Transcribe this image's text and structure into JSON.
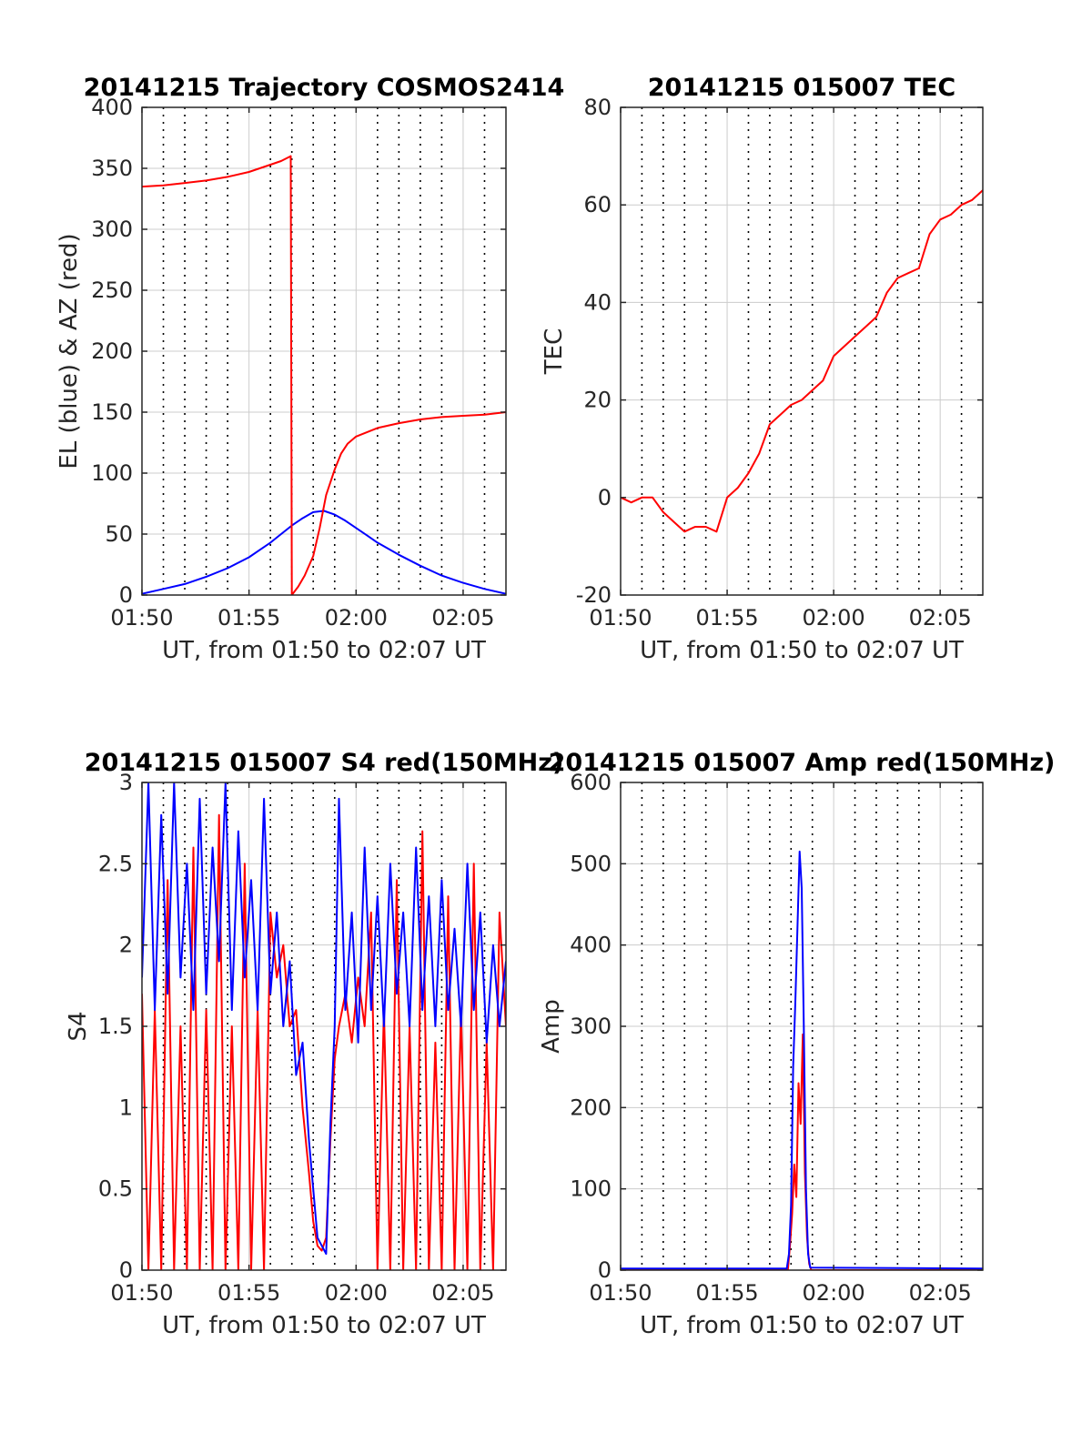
{
  "colors": {
    "red": "#ff0000",
    "blue": "#0000ff",
    "grid": "#cccccc",
    "dots": "#000000",
    "axis": "#262626"
  },
  "chart_data": [
    {
      "type": "line",
      "title": "20141215 Trajectory COSMOS2414",
      "xlabel": "UT, from 01:50 to 02:07 UT",
      "ylabel": "EL (blue) & AZ (red)",
      "xlim": [
        0,
        17
      ],
      "ylim": [
        0,
        400
      ],
      "x_ticks": [
        0,
        5,
        10,
        15
      ],
      "x_tick_labels": [
        "01:50",
        "01:55",
        "02:00",
        "02:05"
      ],
      "y_ticks": [
        0,
        50,
        100,
        150,
        200,
        250,
        300,
        350,
        400
      ],
      "y_tick_labels": [
        "0",
        "50",
        "100",
        "150",
        "200",
        "250",
        "300",
        "350",
        "400"
      ],
      "grid": true,
      "series": [
        {
          "color": "blue",
          "x": [
            0,
            1,
            2,
            3,
            4,
            5,
            5.5,
            6,
            6.5,
            7,
            7.5,
            8,
            8.5,
            9,
            9.5,
            10,
            10.5,
            11,
            12,
            13,
            14,
            15,
            16,
            17
          ],
          "y": [
            1,
            5,
            9,
            15,
            22,
            31,
            37,
            43,
            50,
            57,
            63,
            68,
            69,
            66,
            61,
            55,
            49,
            43,
            33,
            24,
            16,
            10,
            5,
            1
          ]
        },
        {
          "color": "red",
          "x": [
            0,
            1,
            2,
            3,
            4,
            5,
            5.5,
            6,
            6.5,
            6.95,
            7.0,
            7.3,
            7.6,
            8.0,
            8.3,
            8.6,
            9.0,
            9.3,
            9.6,
            10.0,
            11.0,
            12.0,
            13.0,
            14.0,
            15.0,
            16.0,
            17.0
          ],
          "y": [
            335,
            336,
            338,
            340,
            343,
            347,
            350,
            353,
            356,
            360,
            0,
            7,
            16,
            32,
            55,
            82,
            103,
            116,
            124,
            130,
            137,
            141,
            144,
            146,
            147,
            148,
            150
          ]
        }
      ]
    },
    {
      "type": "line",
      "title": "20141215 015007 TEC",
      "xlabel": "UT, from 01:50 to 02:07 UT",
      "ylabel": "TEC",
      "xlim": [
        0,
        17
      ],
      "ylim": [
        -20,
        80
      ],
      "x_ticks": [
        0,
        5,
        10,
        15
      ],
      "x_tick_labels": [
        "01:50",
        "01:55",
        "02:00",
        "02:05"
      ],
      "y_ticks": [
        -20,
        0,
        20,
        40,
        60,
        80
      ],
      "y_tick_labels": [
        "-20",
        "0",
        "20",
        "40",
        "60",
        "80"
      ],
      "grid": true,
      "series": [
        {
          "color": "red",
          "x": [
            0,
            0.5,
            1,
            1.5,
            2,
            2.5,
            3,
            3.5,
            4,
            4.5,
            5,
            5.5,
            6,
            6.5,
            7,
            7.5,
            8,
            8.5,
            9,
            9.5,
            10,
            10.5,
            11,
            11.5,
            12,
            12.5,
            13,
            13.5,
            14,
            14.5,
            15,
            15.5,
            16,
            16.5,
            17
          ],
          "y": [
            0,
            -1,
            0,
            0,
            -3,
            -5,
            -7,
            -6,
            -6,
            -7,
            0,
            2,
            5,
            9,
            15,
            17,
            19,
            20,
            22,
            24,
            29,
            31,
            33,
            35,
            37,
            42,
            45,
            46,
            47,
            54,
            57,
            58,
            60,
            61,
            63
          ]
        }
      ]
    },
    {
      "type": "line",
      "title": "20141215 015007 S4 red(150MHz)",
      "xlabel": "UT, from 01:50 to 02:07 UT",
      "ylabel": "S4",
      "xlim": [
        0,
        17
      ],
      "ylim": [
        0,
        3
      ],
      "x_ticks": [
        0,
        5,
        10,
        15
      ],
      "x_tick_labels": [
        "01:50",
        "01:55",
        "02:00",
        "02:05"
      ],
      "y_ticks": [
        0,
        0.5,
        1,
        1.5,
        2,
        2.5,
        3
      ],
      "y_tick_labels": [
        "0",
        "0.5",
        "1",
        "1.5",
        "2",
        "2.5",
        "3"
      ],
      "grid": true,
      "series": [
        {
          "color": "red",
          "x": [
            0,
            0.3,
            0.6,
            0.9,
            1.2,
            1.5,
            1.8,
            2.1,
            2.4,
            2.7,
            3.0,
            3.3,
            3.6,
            3.9,
            4.2,
            4.5,
            4.8,
            5.1,
            5.4,
            5.7,
            6.0,
            6.3,
            6.6,
            6.9,
            7.2,
            7.5,
            7.8,
            8.0,
            8.2,
            8.4,
            8.6,
            8.8,
            9.0,
            9.2,
            9.5,
            9.8,
            10.1,
            10.4,
            10.7,
            11.0,
            11.3,
            11.6,
            11.9,
            12.2,
            12.5,
            12.8,
            13.1,
            13.4,
            13.7,
            14.0,
            14.3,
            14.6,
            14.9,
            15.2,
            15.5,
            15.8,
            16.1,
            16.4,
            16.7,
            17.0
          ],
          "y": [
            1.7,
            0,
            1.6,
            0,
            2.4,
            0,
            1.5,
            0,
            2.6,
            0,
            1.6,
            0,
            2.8,
            0,
            1.5,
            0,
            2.5,
            0,
            1.6,
            0,
            2.2,
            1.8,
            2.0,
            1.5,
            1.6,
            1.0,
            0.6,
            0.3,
            0.15,
            0.12,
            0.2,
            0.8,
            1.3,
            1.5,
            1.7,
            1.4,
            1.8,
            1.5,
            2.2,
            0,
            1.6,
            0,
            2.4,
            0,
            1.5,
            0,
            2.7,
            0,
            1.4,
            0,
            2.3,
            0,
            1.6,
            0,
            2.5,
            0,
            1.4,
            0,
            2.2,
            1.5
          ]
        },
        {
          "color": "blue",
          "x": [
            0,
            0.3,
            0.6,
            0.9,
            1.2,
            1.5,
            1.8,
            2.1,
            2.4,
            2.7,
            3.0,
            3.3,
            3.6,
            3.9,
            4.2,
            4.5,
            4.8,
            5.1,
            5.4,
            5.7,
            6.0,
            6.3,
            6.6,
            6.9,
            7.2,
            7.5,
            7.8,
            8.0,
            8.2,
            8.4,
            8.6,
            8.8,
            9.0,
            9.2,
            9.5,
            9.8,
            10.1,
            10.4,
            10.7,
            11.0,
            11.3,
            11.6,
            11.9,
            12.2,
            12.5,
            12.8,
            13.1,
            13.4,
            13.7,
            14.0,
            14.3,
            14.6,
            14.9,
            15.2,
            15.5,
            15.8,
            16.1,
            16.4,
            16.7,
            17.0
          ],
          "y": [
            1.8,
            3.0,
            1.6,
            2.8,
            1.7,
            3.0,
            1.8,
            2.5,
            1.6,
            2.9,
            1.7,
            2.6,
            1.9,
            3.0,
            1.6,
            2.7,
            1.8,
            2.4,
            1.6,
            2.9,
            1.7,
            2.2,
            1.5,
            1.9,
            1.2,
            1.4,
            0.8,
            0.5,
            0.2,
            0.15,
            0.1,
            0.9,
            1.5,
            2.9,
            1.6,
            2.2,
            1.4,
            2.6,
            1.6,
            2.3,
            1.5,
            2.5,
            1.7,
            2.2,
            1.5,
            2.6,
            1.6,
            2.3,
            1.5,
            2.4,
            1.6,
            2.1,
            1.5,
            2.5,
            1.6,
            2.2,
            1.4,
            2.0,
            1.5,
            1.9
          ]
        }
      ]
    },
    {
      "type": "line",
      "title": "20141215 015007 Amp red(150MHz)",
      "xlabel": "UT, from 01:50 to 02:07 UT",
      "ylabel": "Amp",
      "xlim": [
        0,
        17
      ],
      "ylim": [
        0,
        600
      ],
      "x_ticks": [
        0,
        5,
        10,
        15
      ],
      "x_tick_labels": [
        "01:50",
        "01:55",
        "02:00",
        "02:05"
      ],
      "y_ticks": [
        0,
        100,
        200,
        300,
        400,
        500,
        600
      ],
      "y_tick_labels": [
        "0",
        "100",
        "200",
        "300",
        "400",
        "500",
        "600"
      ],
      "grid": true,
      "series": [
        {
          "color": "red",
          "x": [
            0,
            7.85,
            7.95,
            8.05,
            8.15,
            8.25,
            8.35,
            8.45,
            8.55,
            8.65,
            8.75,
            8.85,
            8.95,
            17
          ],
          "y": [
            0,
            0,
            30,
            70,
            130,
            90,
            230,
            180,
            290,
            120,
            40,
            8,
            0,
            0
          ]
        },
        {
          "color": "blue",
          "x": [
            0,
            7.8,
            7.9,
            8.0,
            8.1,
            8.2,
            8.3,
            8.4,
            8.5,
            8.6,
            8.7,
            8.8,
            8.9,
            17
          ],
          "y": [
            2,
            2,
            20,
            80,
            250,
            330,
            420,
            515,
            470,
            300,
            100,
            20,
            3,
            2
          ]
        }
      ]
    }
  ]
}
